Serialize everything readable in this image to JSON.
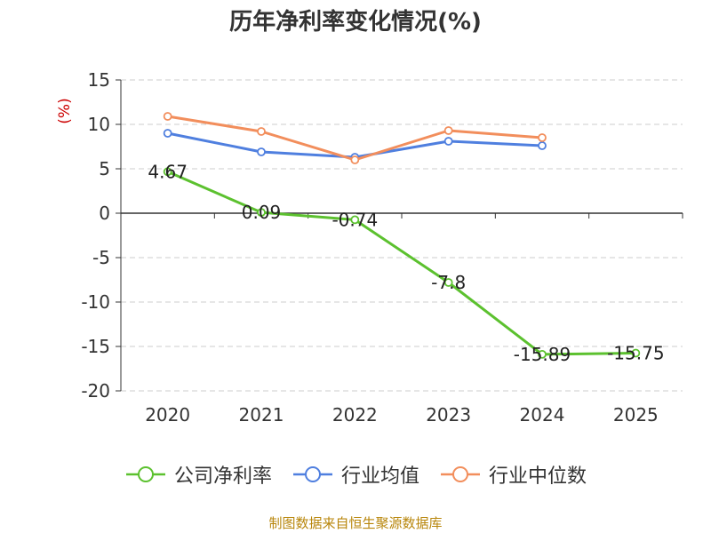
{
  "chart_data": {
    "type": "line",
    "title": "历年净利率变化情况(%)",
    "ylabel": "(%)",
    "xlabel": "",
    "ylim": [
      -20,
      15
    ],
    "yticks": [
      "15",
      "10",
      "5",
      "0",
      "-5",
      "-10",
      "-15",
      "-20"
    ],
    "categories": [
      "2020",
      "2021",
      "2022",
      "2023",
      "2024",
      "2025"
    ],
    "grid": "horizontal-dashed",
    "legend_position": "bottom",
    "series": [
      {
        "name": "公司净利率",
        "color": "#5cc12f",
        "values": [
          4.67,
          0.09,
          -0.74,
          -7.8,
          -15.89,
          -15.75
        ],
        "labels": [
          "4.67",
          "0.09",
          "-0.74",
          "-7.8",
          "-15.89",
          "-15.75"
        ]
      },
      {
        "name": "行业均值",
        "color": "#4f7fdf",
        "values": [
          9.0,
          6.9,
          6.3,
          8.1,
          7.6,
          null
        ]
      },
      {
        "name": "行业中位数",
        "color": "#f28e5c",
        "values": [
          10.9,
          9.2,
          6.0,
          9.3,
          8.5,
          null
        ]
      }
    ]
  },
  "source_note": "制图数据来自恒生聚源数据库"
}
